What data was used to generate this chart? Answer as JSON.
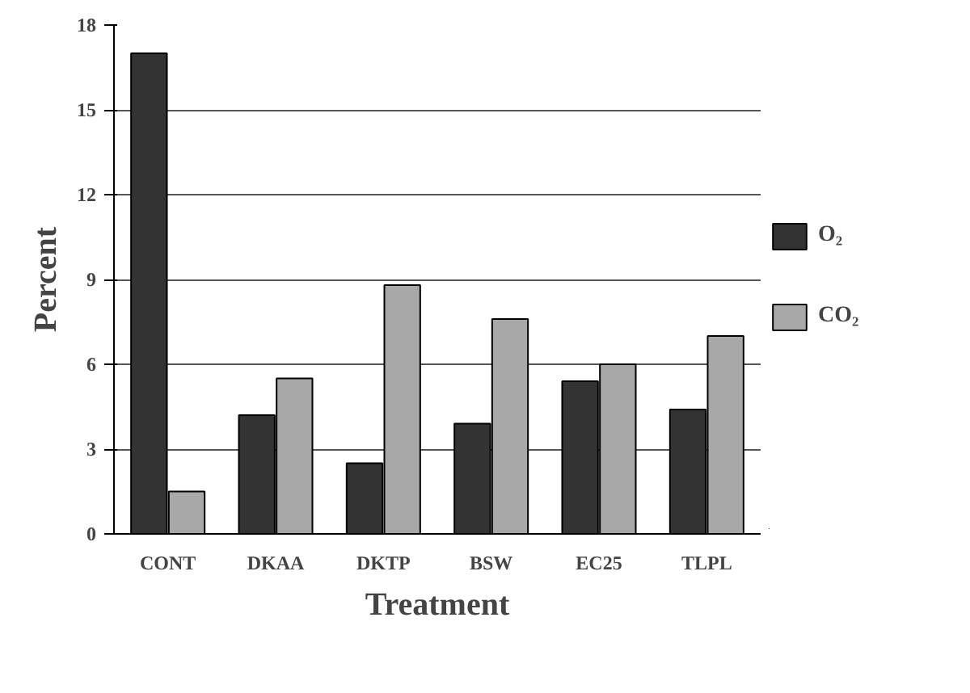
{
  "chart_data": {
    "type": "bar",
    "xlabel": "Treatment",
    "ylabel": "Percent",
    "categories": [
      "CONT",
      "DKAA",
      "DKTP",
      "BSW",
      "EC25",
      "TLPL"
    ],
    "series": [
      {
        "name": "O₂",
        "color": "#333333",
        "values": [
          17,
          4.2,
          2.5,
          3.9,
          5.4,
          4.4
        ]
      },
      {
        "name": "CO₂",
        "color": "#a8a8a8",
        "values": [
          1.5,
          5.5,
          8.8,
          7.6,
          6.0,
          7.0
        ]
      }
    ],
    "ylim": [
      0,
      18
    ],
    "yticks": [
      0,
      3,
      6,
      9,
      12,
      15,
      18
    ],
    "grid": "y",
    "legend": "right"
  }
}
